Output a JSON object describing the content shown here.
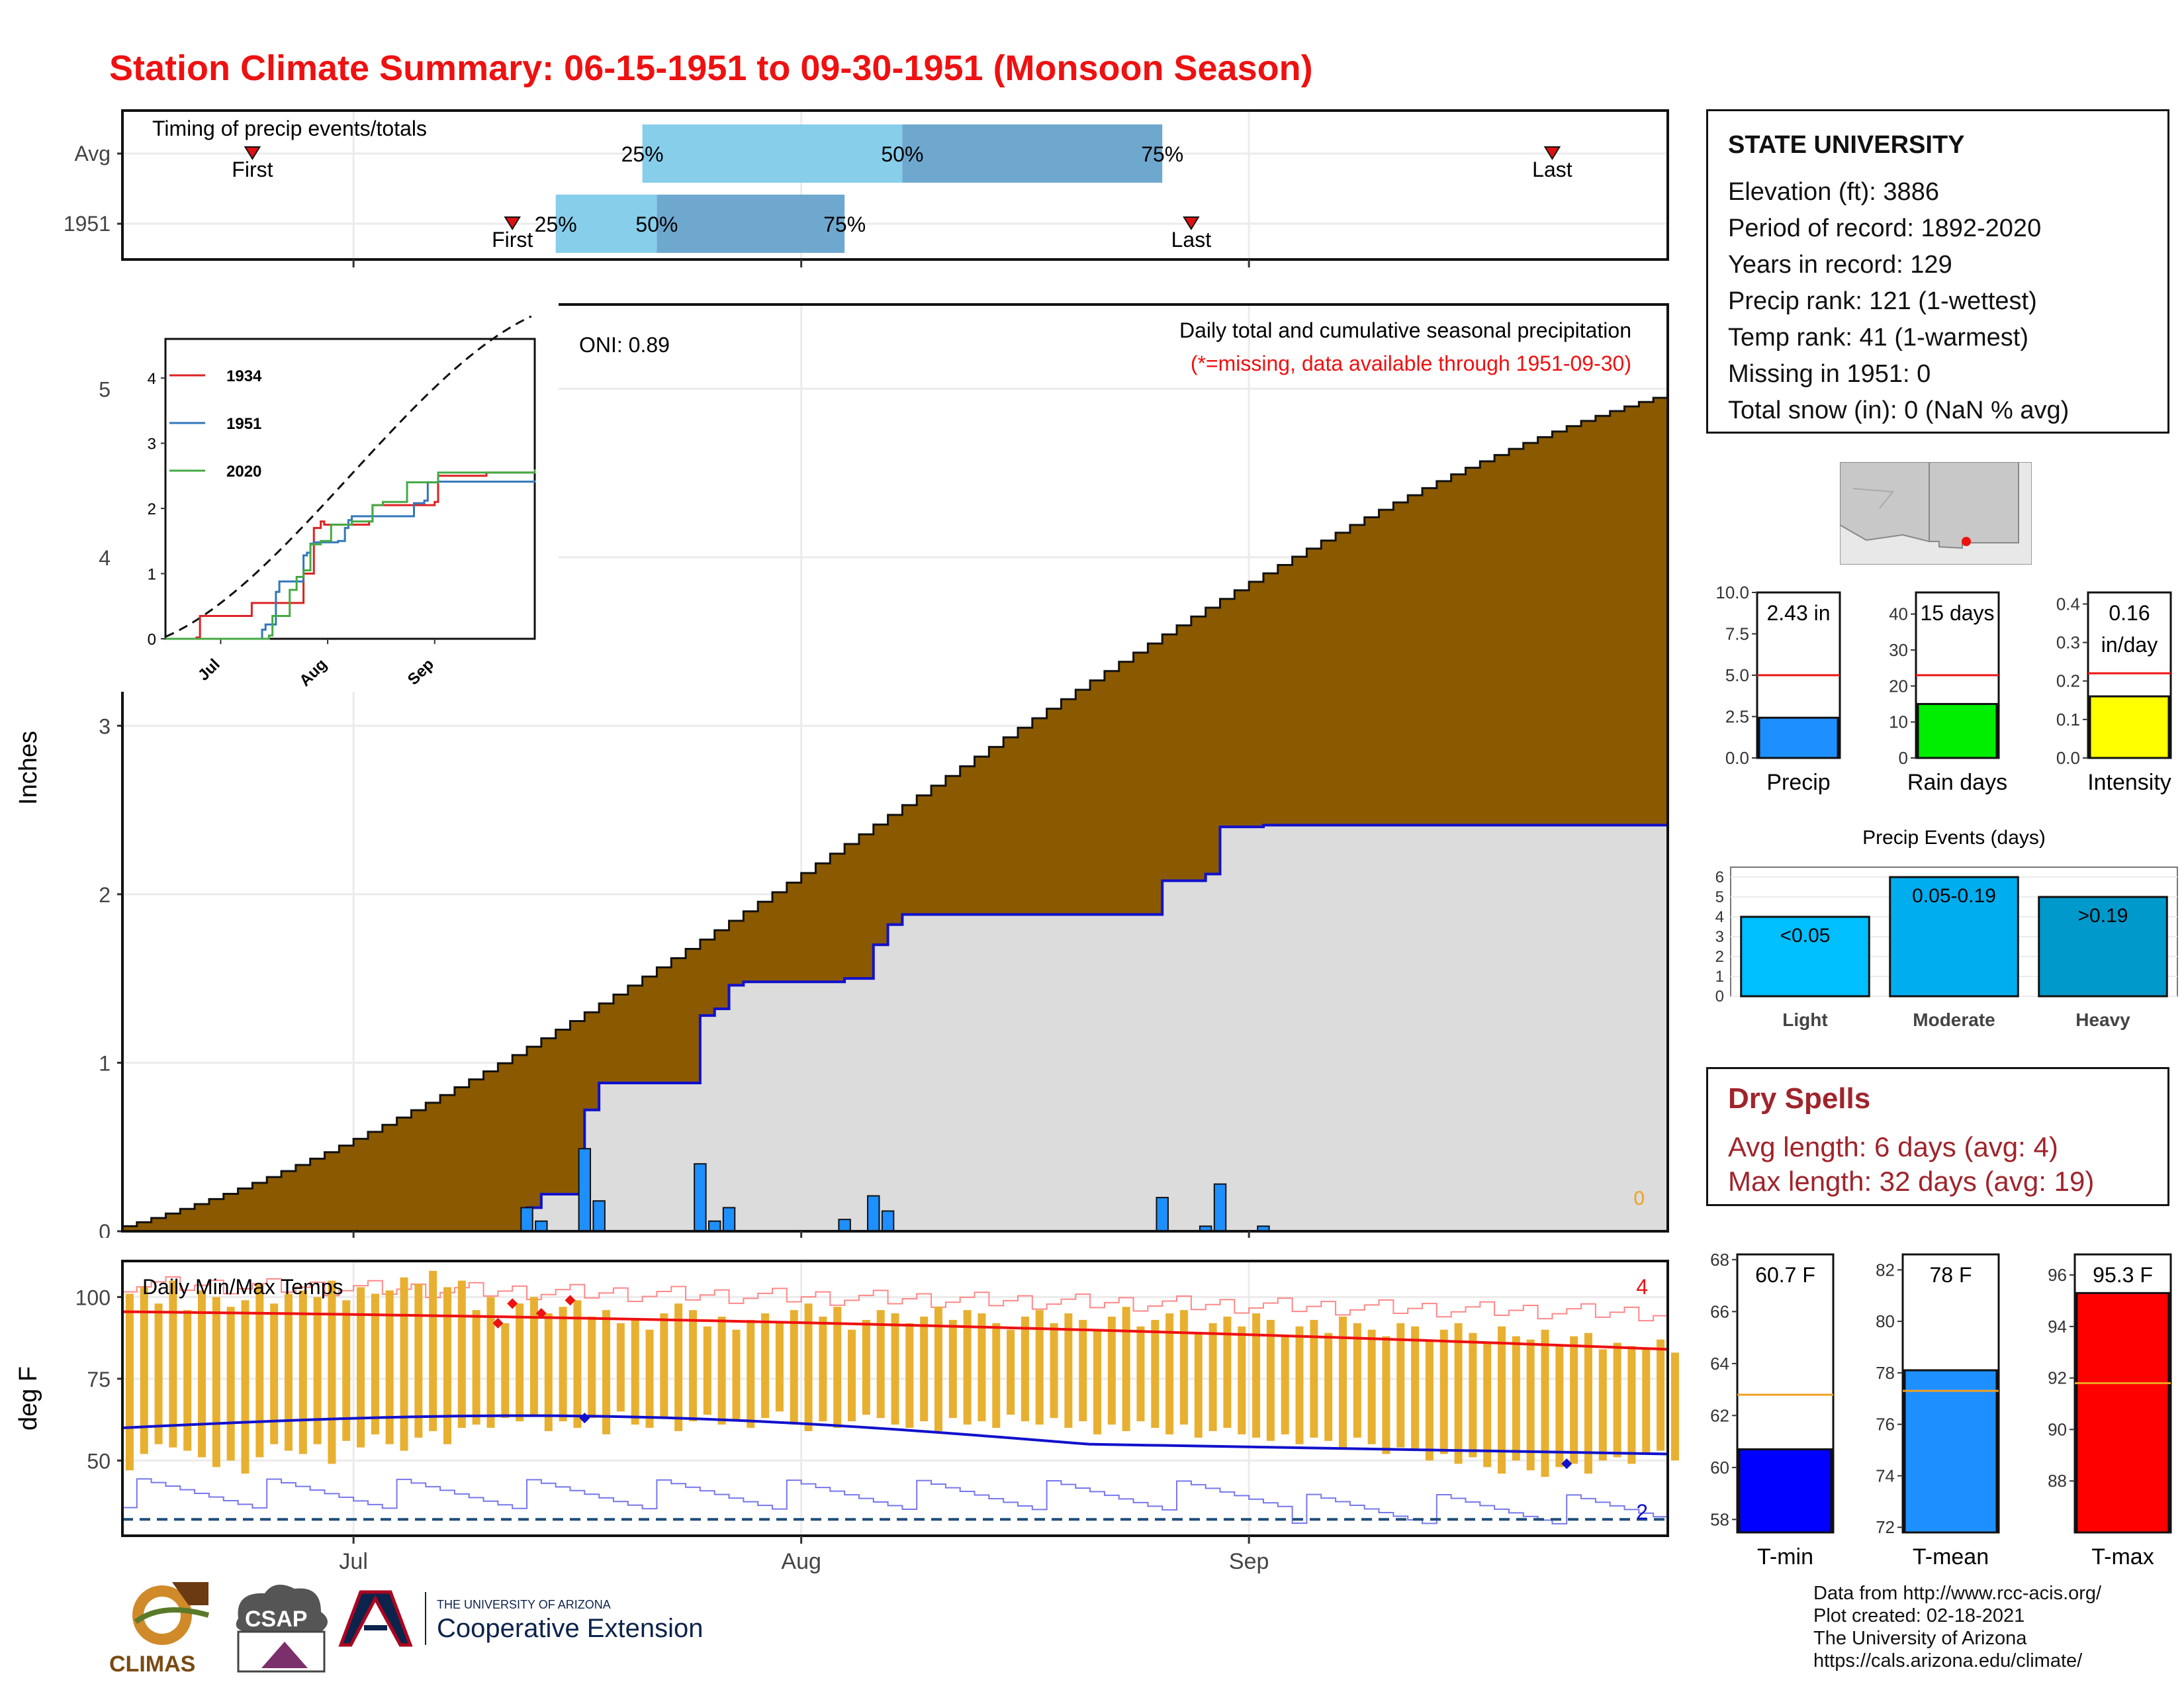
{
  "title": "Station Climate Summary: 06-15-1951 to 09-30-1951 (Monsoon Season)",
  "colors": {
    "title": "#ee1111",
    "cumulative_fill": "#8b5a00",
    "observed_fill": "#dcdcdc",
    "observed_line": "#1111cc",
    "daily_bar": "#1e8fff",
    "quartile_light": "#87ceeb",
    "quartile_dark": "#6fa8cf",
    "temp_bar": "#e8b030",
    "tmax_line": "#ee1111",
    "tmin_line": "#1111cc",
    "dry_spells": "#a0242b"
  },
  "station": {
    "name": "STATE UNIVERSITY",
    "lines": [
      "Elevation (ft): 3886",
      "Period of record: 1892-2020",
      "Years in record: 129",
      "Precip rank: 121 (1-wettest)",
      "Temp rank: 41 (1-warmest)",
      "Missing in 1951: 0",
      "Total snow (in): 0 (NaN % avg)"
    ]
  },
  "dry_spells": {
    "title": "Dry Spells",
    "avg_length": "Avg length: 6 days (avg: 4)",
    "max_length": "Max length: 32 days (avg: 19)"
  },
  "credits": [
    "Data from http://www.rcc-acis.org/",
    "Plot created: 02-18-2021",
    "The University of Arizona",
    "https://cals.arizona.edu/climate/"
  ],
  "logos": {
    "climas": "CLIMAS",
    "csap": "CSAP",
    "ua_small": "THE UNIVERSITY OF ARIZONA",
    "ua_big": "Cooperative Extension"
  },
  "chart_data": [
    {
      "id": "timing",
      "type": "bar",
      "title": "Timing of precip events/totals",
      "x_ticks": [
        "Jul",
        "Aug",
        "Sep"
      ],
      "rows": [
        {
          "label": "Avg",
          "first": "2021-06-24",
          "last": "2021-09-22",
          "q25": "2021-07-21",
          "q50": "2021-08-08",
          "q75": "2021-08-26",
          "q25_label": "25%",
          "q50_label": "50%",
          "q75_label": "75%",
          "first_label": "First",
          "last_label": "Last"
        },
        {
          "label": "1951",
          "first": "2021-07-12",
          "last": "2021-08-28",
          "q25": "2021-07-15",
          "q50": "2021-07-22",
          "q75": "2021-08-04",
          "q25_label": "25%",
          "q50_label": "50%",
          "q75_label": "75%",
          "first_label": "First",
          "last_label": "Last"
        }
      ]
    },
    {
      "id": "precip",
      "type": "area",
      "ylabel": "Inches",
      "ylim": [
        0,
        5.5
      ],
      "yticks": [
        0,
        1,
        2,
        3,
        4,
        5
      ],
      "x_ticks": [
        "Jul",
        "Aug",
        "Sep"
      ],
      "oni_label": "ONI: 0.89",
      "annotation": "Daily total and cumulative seasonal precipitation",
      "annotation_missing": "(*=missing, data available through 1951-09-30)",
      "missing_count": "0",
      "avg_cumulative": {
        "start": "2021-06-15",
        "end": "2021-09-30",
        "start_value": 0.03,
        "end_value": 4.97
      },
      "observed_cumulative": [
        [
          "2021-06-15",
          0
        ],
        [
          "2021-07-13",
          0.14
        ],
        [
          "2021-07-14",
          0.22
        ],
        [
          "2021-07-16",
          0.22
        ],
        [
          "2021-07-17",
          0.72
        ],
        [
          "2021-07-18",
          0.88
        ],
        [
          "2021-07-24",
          0.88
        ],
        [
          "2021-07-25",
          1.28
        ],
        [
          "2021-07-26",
          1.32
        ],
        [
          "2021-07-27",
          1.46
        ],
        [
          "2021-07-28",
          1.48
        ],
        [
          "2021-08-03",
          1.48
        ],
        [
          "2021-08-04",
          1.5
        ],
        [
          "2021-08-05",
          1.5
        ],
        [
          "2021-08-06",
          1.7
        ],
        [
          "2021-08-07",
          1.82
        ],
        [
          "2021-08-08",
          1.88
        ],
        [
          "2021-08-25",
          1.88
        ],
        [
          "2021-08-26",
          2.08
        ],
        [
          "2021-08-29",
          2.12
        ],
        [
          "2021-08-30",
          2.4
        ],
        [
          "2021-09-02",
          2.41
        ],
        [
          "2021-09-30",
          2.43
        ]
      ],
      "daily_bars": [
        [
          "2021-07-13",
          0.14
        ],
        [
          "2021-07-14",
          0.06
        ],
        [
          "2021-07-17",
          0.49
        ],
        [
          "2021-07-18",
          0.18
        ],
        [
          "2021-07-25",
          0.4
        ],
        [
          "2021-07-26",
          0.06
        ],
        [
          "2021-07-27",
          0.14
        ],
        [
          "2021-08-04",
          0.07
        ],
        [
          "2021-08-06",
          0.21
        ],
        [
          "2021-08-07",
          0.12
        ],
        [
          "2021-08-26",
          0.2
        ],
        [
          "2021-08-29",
          0.03
        ],
        [
          "2021-08-30",
          0.28
        ],
        [
          "2021-09-02",
          0.03
        ]
      ],
      "inset": {
        "type": "line",
        "ylim": [
          0,
          4.6
        ],
        "yticks": [
          0,
          1,
          2,
          3,
          4
        ],
        "x_ticks": [
          "Jul",
          "Aug",
          "Sep"
        ],
        "series": [
          {
            "name": "1934",
            "color": "#dd2222",
            "points": [
              [
                "2021-06-15",
                0
              ],
              [
                "2021-06-24",
                0.02
              ],
              [
                "2021-06-25",
                0.35
              ],
              [
                "2021-07-09",
                0.35
              ],
              [
                "2021-07-10",
                0.55
              ],
              [
                "2021-07-24",
                0.55
              ],
              [
                "2021-07-25",
                1.0
              ],
              [
                "2021-07-27",
                1.0
              ],
              [
                "2021-07-28",
                1.7
              ],
              [
                "2021-07-30",
                1.8
              ],
              [
                "2021-07-31",
                1.75
              ],
              [
                "2021-08-13",
                1.8
              ],
              [
                "2021-08-14",
                2.05
              ],
              [
                "2021-09-01",
                2.1
              ],
              [
                "2021-09-02",
                2.5
              ],
              [
                "2021-09-15",
                2.5
              ],
              [
                "2021-09-16",
                2.55
              ],
              [
                "2021-09-30",
                2.6
              ]
            ]
          },
          {
            "name": "1951",
            "color": "#3377bb",
            "points": [
              [
                "2021-06-15",
                0
              ],
              [
                "2021-07-13",
                0.14
              ],
              [
                "2021-07-14",
                0.22
              ],
              [
                "2021-07-16",
                0.22
              ],
              [
                "2021-07-17",
                0.72
              ],
              [
                "2021-07-18",
                0.88
              ],
              [
                "2021-07-24",
                0.88
              ],
              [
                "2021-07-25",
                1.28
              ],
              [
                "2021-07-26",
                1.32
              ],
              [
                "2021-07-27",
                1.46
              ],
              [
                "2021-07-28",
                1.48
              ],
              [
                "2021-08-03",
                1.48
              ],
              [
                "2021-08-04",
                1.5
              ],
              [
                "2021-08-05",
                1.5
              ],
              [
                "2021-08-06",
                1.7
              ],
              [
                "2021-08-07",
                1.82
              ],
              [
                "2021-08-08",
                1.88
              ],
              [
                "2021-08-25",
                1.88
              ],
              [
                "2021-08-26",
                2.08
              ],
              [
                "2021-08-29",
                2.12
              ],
              [
                "2021-08-30",
                2.4
              ],
              [
                "2021-09-02",
                2.41
              ],
              [
                "2021-09-30",
                2.43
              ]
            ]
          },
          {
            "name": "2020",
            "color": "#44aa44",
            "points": [
              [
                "2021-06-15",
                0
              ],
              [
                "2021-07-15",
                0.05
              ],
              [
                "2021-07-16",
                0.35
              ],
              [
                "2021-07-20",
                0.35
              ],
              [
                "2021-07-21",
                0.75
              ],
              [
                "2021-07-23",
                0.95
              ],
              [
                "2021-07-25",
                1.05
              ],
              [
                "2021-07-27",
                1.45
              ],
              [
                "2021-07-30",
                1.5
              ],
              [
                "2021-08-02",
                1.75
              ],
              [
                "2021-08-08",
                1.8
              ],
              [
                "2021-08-13",
                1.8
              ],
              [
                "2021-08-14",
                2.05
              ],
              [
                "2021-08-17",
                2.1
              ],
              [
                "2021-08-22",
                2.1
              ],
              [
                "2021-08-24",
                2.4
              ],
              [
                "2021-09-01",
                2.4
              ],
              [
                "2021-09-02",
                2.55
              ],
              [
                "2021-09-20",
                2.55
              ],
              [
                "2021-09-30",
                2.6
              ]
            ]
          }
        ],
        "avg_curve": {
          "start_value": 0.03,
          "end_value": 4.97
        }
      }
    },
    {
      "id": "gauges_precip",
      "type": "bar",
      "items": [
        {
          "title": "Precip",
          "value_label": "2.43 in",
          "value": 2.43,
          "normal": 5.0,
          "ylim": [
            0,
            10.0
          ],
          "yticks": [
            "0.0",
            "2.5",
            "5.0",
            "7.5",
            "10.0"
          ],
          "color": "#1e8fff"
        },
        {
          "title": "Rain days",
          "value_label": "15 days",
          "value": 15,
          "normal": 23,
          "ylim": [
            0,
            46
          ],
          "yticks": [
            "0",
            "10",
            "20",
            "30",
            "40"
          ],
          "color": "#00ee00"
        },
        {
          "title": "Intensity",
          "value_label_1": "0.16",
          "value_label_2": "in/day",
          "value": 0.16,
          "normal": 0.22,
          "ylim": [
            0,
            0.43
          ],
          "yticks": [
            "0.0",
            "0.1",
            "0.2",
            "0.3",
            "0.4"
          ],
          "color": "#ffff00"
        }
      ]
    },
    {
      "id": "events",
      "type": "bar",
      "title": "Precip Events (days)",
      "ylim": [
        0,
        6.5
      ],
      "yticks": [
        "0",
        "1",
        "2",
        "3",
        "4",
        "5",
        "6"
      ],
      "categories": [
        "Light",
        "Moderate",
        "Heavy"
      ],
      "bar_labels": [
        "<0.05",
        "0.05-0.19",
        ">0.19"
      ],
      "values": [
        4,
        6,
        5
      ],
      "colors": [
        "#00bfff",
        "#00aef0",
        "#0099cc"
      ]
    },
    {
      "id": "temps",
      "type": "bar",
      "title": "Daily Min/Max Temps",
      "ylabel": "deg F",
      "ylim": [
        27,
        111
      ],
      "yticks": [
        50,
        75,
        100
      ],
      "x_ticks": [
        "Jul",
        "Aug",
        "Sep"
      ],
      "count_high": "4",
      "count_low": "2",
      "freeze_line": 32,
      "max_record": {
        "start": 104,
        "end": 95
      },
      "min_record": {
        "start": 40,
        "end": 39
      },
      "avg_tmax": {
        "start": 95.5,
        "end": 84
      },
      "avg_tmin": {
        "start": 60,
        "end": 52
      },
      "daily_tmax": [
        101,
        103,
        98,
        105,
        96,
        102,
        100,
        97,
        99,
        104,
        98,
        101,
        102,
        100,
        105,
        99,
        103,
        101,
        102,
        106,
        104,
        108,
        103,
        105,
        96,
        100,
        92,
        98,
        100,
        95,
        97,
        99,
        94,
        96,
        92,
        93,
        90,
        95,
        98,
        96,
        91,
        94,
        90,
        93,
        95,
        92,
        96,
        98,
        94,
        97,
        90,
        93,
        96,
        95,
        92,
        94,
        97,
        93,
        96,
        95,
        92,
        90,
        94,
        96,
        92,
        95,
        93,
        90,
        94,
        97,
        91,
        93,
        95,
        96,
        89,
        92,
        94,
        91,
        95,
        93,
        88,
        91,
        93,
        89,
        94,
        92,
        90,
        88,
        92,
        91,
        87,
        90,
        92,
        89,
        86,
        91,
        88,
        87,
        90,
        85,
        88,
        89,
        84,
        86,
        85,
        84,
        87,
        83
      ],
      "daily_tmin": [
        47,
        52,
        55,
        54,
        53,
        51,
        48,
        50,
        46,
        51,
        55,
        53,
        52,
        55,
        49,
        56,
        54,
        58,
        55,
        53,
        57,
        59,
        55,
        60,
        61,
        60,
        63,
        62,
        64,
        59,
        62,
        60,
        63,
        58,
        65,
        61,
        60,
        63,
        59,
        62,
        64,
        61,
        62,
        60,
        63,
        65,
        61,
        59,
        62,
        60,
        62,
        64,
        63,
        61,
        60,
        62,
        59,
        63,
        61,
        62,
        60,
        64,
        62,
        61,
        63,
        60,
        62,
        58,
        61,
        59,
        62,
        60,
        58,
        61,
        57,
        59,
        60,
        58,
        57,
        56,
        58,
        55,
        57,
        56,
        54,
        57,
        55,
        52,
        54,
        53,
        50,
        52,
        49,
        51,
        48,
        46,
        50,
        47,
        45,
        48,
        49,
        46,
        50,
        51,
        49,
        52,
        53,
        50
      ],
      "record_highs": [
        "2021-07-11",
        "2021-07-12",
        "2021-07-14",
        "2021-07-16"
      ],
      "record_lows": [
        "2021-07-17",
        "2021-09-23"
      ]
    },
    {
      "id": "gauges_temp",
      "type": "bar",
      "items": [
        {
          "title": "T-min",
          "value_label": "60.7 F",
          "value": 60.7,
          "normal": 62.8,
          "ylim": [
            57.5,
            68.2
          ],
          "yticks": [
            "58",
            "60",
            "62",
            "64",
            "66",
            "68"
          ],
          "color": "#0000ff"
        },
        {
          "title": "T-mean",
          "value_label": "78 F",
          "value": 78.1,
          "normal": 77.3,
          "ylim": [
            71.8,
            82.6
          ],
          "yticks": [
            "72",
            "74",
            "76",
            "78",
            "80",
            "82"
          ],
          "color": "#1e8fff"
        },
        {
          "title": "T-max",
          "value_label": "95.3 F",
          "value": 95.3,
          "normal": 91.8,
          "ylim": [
            86.0,
            96.8
          ],
          "yticks": [
            "88",
            "90",
            "92",
            "94",
            "96"
          ],
          "color": "#ff0000"
        }
      ]
    }
  ]
}
